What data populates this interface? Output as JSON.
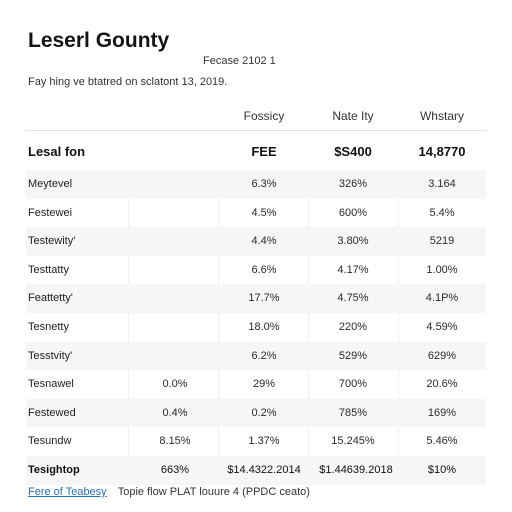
{
  "document": {
    "title": "Leserl Gounty",
    "page_label": "Fecase 2102  1",
    "subtitle": "Fay hing ve btatred on sclatont 13, 2019."
  },
  "table": {
    "headers": [
      "Fossicy",
      "Nate Ity",
      "Whstary"
    ],
    "summary": {
      "label": "Lesal fon",
      "cells": [
        "FEE",
        "$S400",
        "14,8770"
      ]
    },
    "rows": [
      {
        "label": "Meytevel",
        "pre": "",
        "cells": [
          "6.3%",
          "326%",
          "3.164"
        ]
      },
      {
        "label": "Festewei",
        "pre": "",
        "cells": [
          "4.5%",
          "600%",
          "5.4%"
        ]
      },
      {
        "label": "Testewity'",
        "pre": "",
        "cells": [
          "4.4%",
          "3.80%",
          "5219"
        ]
      },
      {
        "label": "Testtatty",
        "pre": "",
        "cells": [
          "6.6%",
          "4.17%",
          "1.00%"
        ]
      },
      {
        "label": "Feattetty'",
        "pre": "",
        "cells": [
          "17.7%",
          "4.75%",
          "4.1P%"
        ]
      },
      {
        "label": "Tesnetty",
        "pre": "",
        "cells": [
          "18.0%",
          "220%",
          "4.59%"
        ]
      },
      {
        "label": "Tesstvity'",
        "pre": "",
        "cells": [
          "6.2%",
          "529%",
          "629%"
        ]
      },
      {
        "label": "Tesnawel",
        "pre": "0.0%",
        "cells": [
          "29%",
          "700%",
          "20.6%"
        ]
      },
      {
        "label": "Festewed",
        "pre": "0.4%",
        "cells": [
          "0.2%",
          "785%",
          "169%"
        ]
      },
      {
        "label": "Tesundw",
        "pre": "8.15%",
        "cells": [
          "1.37%",
          "15.245%",
          "5.46%"
        ]
      },
      {
        "label": "Tesightop",
        "pre": "663%",
        "cells": [
          "$14.4322.2014",
          "$1.44639.2018",
          "$10%"
        ]
      }
    ]
  },
  "footer": {
    "link": "Fere of Teabesy",
    "note": "Topie flow PLAT louure 4 (PPDC ceato)"
  },
  "colors": {
    "link": "#2a6fb5",
    "row_stripe": "#f6f6f6",
    "text": "#1f1f1f"
  }
}
